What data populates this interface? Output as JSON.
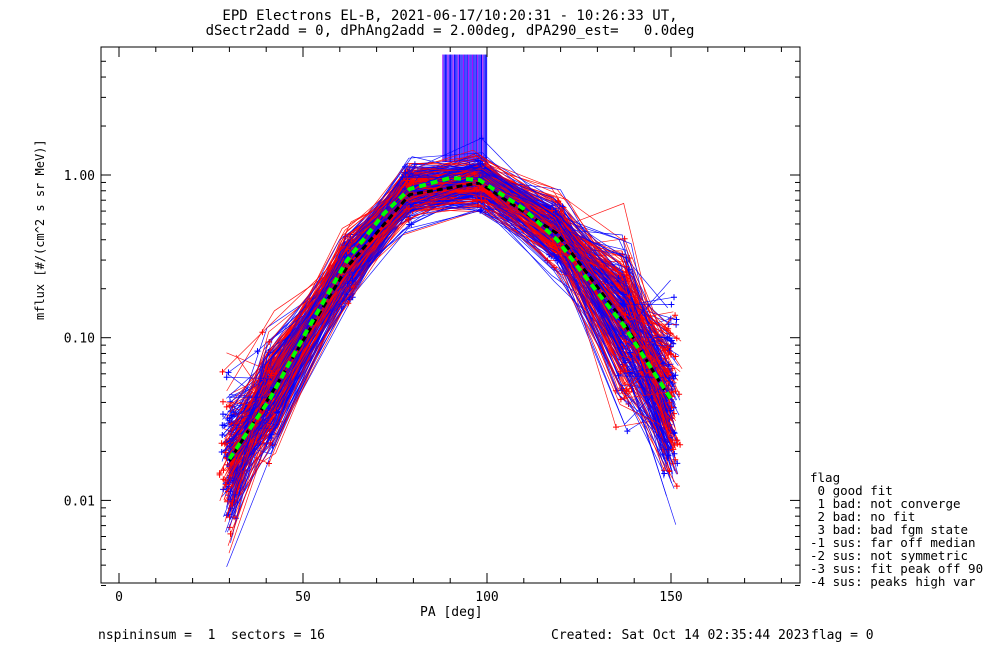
{
  "title_line1": "EPD Electrons EL-B, 2021-06-17/10:20:31 - 10:26:33 UT,",
  "title_line2": "dSectr2add = 0, dPhAng2add = 2.00deg, dPA290_est=   0.0deg",
  "footer_left": "nspininsum =  1  sectors = 16",
  "footer_created": "Created: Sat Oct 14 02:35:44 2023",
  "footer_flag": "flag = 0",
  "legend": {
    "title": "flag",
    "entries": [
      " 0 good fit",
      " 1 bad: not converge",
      " 2 bad: no fit",
      " 3 bad: bad fgm state",
      "-1 sus: far off median",
      "-2 sus: not symmetric",
      "-3 sus: fit peak off 90",
      "-4 sus: peaks high var"
    ]
  },
  "colors": {
    "red_series": "#ff0000",
    "blue_series": "#0000ff",
    "fit_green": "#00ff00",
    "median_black": "#000000"
  },
  "chart_data": {
    "type": "line",
    "xlabel": "PA [deg]",
    "ylabel": "mflux [#/(cm^2 s sr MeV)]",
    "xlim": [
      -5,
      185
    ],
    "ylim": [
      0.003,
      5.5
    ],
    "yscale": "log",
    "x_ticks": [
      0,
      50,
      100,
      150
    ],
    "x_tick_labels": [
      "0",
      "50",
      "100",
      "150"
    ],
    "y_ticks": [
      0.01,
      0.1,
      1.0
    ],
    "y_tick_labels": [
      "0.01",
      "0.10",
      "1.00"
    ],
    "pa_bins": [
      30,
      41,
      62,
      79,
      98,
      119,
      137,
      150
    ],
    "median_profile": [
      0.018,
      0.045,
      0.28,
      0.78,
      0.92,
      0.45,
      0.13,
      0.042
    ],
    "fit_curve": {
      "x": [
        30,
        41,
        51,
        62,
        72,
        79,
        90,
        98,
        110,
        119,
        130,
        137,
        150
      ],
      "y": [
        0.018,
        0.042,
        0.11,
        0.3,
        0.58,
        0.82,
        0.96,
        0.93,
        0.62,
        0.4,
        0.19,
        0.12,
        0.042
      ]
    },
    "vertical_lines": {
      "x_range": [
        88,
        100
      ],
      "y_range": [
        1.2,
        5.5
      ],
      "color": "blue"
    },
    "series_count": 300,
    "series_note": "red = one spin sector set, blue = other; each is a PA profile with + markers"
  }
}
